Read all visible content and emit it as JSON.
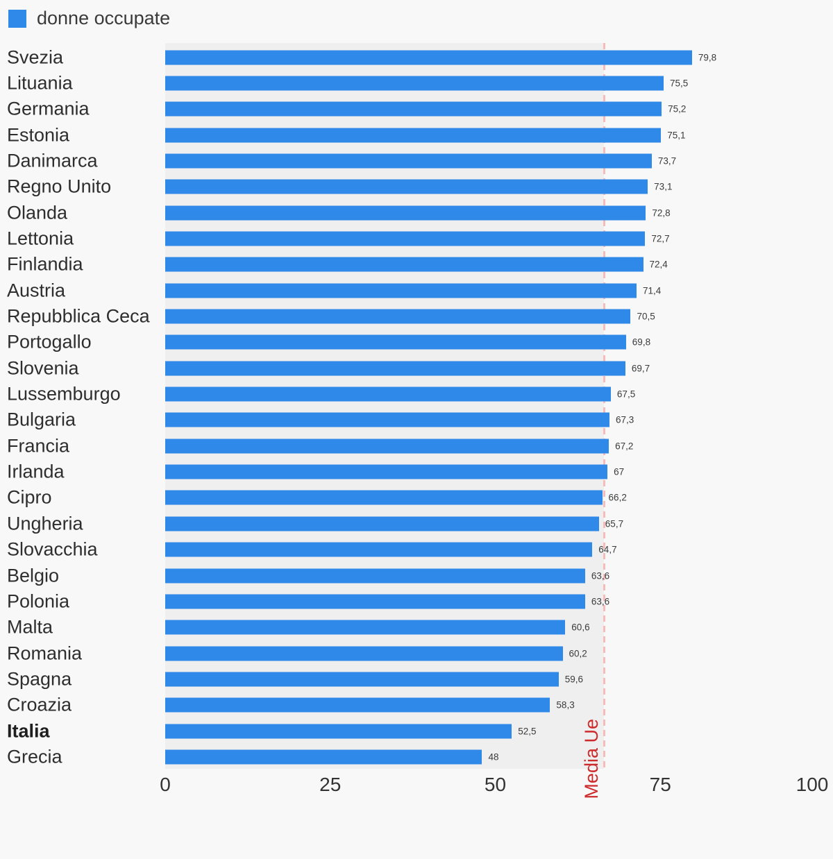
{
  "legend": {
    "label": "donne occupate",
    "color": "#2f89e8"
  },
  "chart_data": {
    "type": "bar",
    "orientation": "horizontal",
    "title": "",
    "xlabel": "",
    "ylabel": "",
    "xlim": [
      0,
      100
    ],
    "x_ticks": [
      "0",
      "25",
      "50",
      "75",
      "100"
    ],
    "x_tick_values": [
      0,
      25,
      50,
      75,
      100
    ],
    "grid": false,
    "legend_position": "top-left",
    "bar_color": "#2f89e8",
    "track_color": "#efefef",
    "categories": [
      "Svezia",
      "Lituania",
      "Germania",
      "Estonia",
      "Danimarca",
      "Regno Unito",
      "Olanda",
      "Lettonia",
      "Finlandia",
      "Austria",
      "Repubblica Ceca",
      "Portogallo",
      "Slovenia",
      "Lussemburgo",
      "Bulgaria",
      "Francia",
      "Irlanda",
      "Cipro",
      "Ungheria",
      "Slovacchia",
      "Belgio",
      "Polonia",
      "Malta",
      "Romania",
      "Spagna",
      "Croazia",
      "Italia",
      "Grecia"
    ],
    "values": [
      79.8,
      75.5,
      75.2,
      75.1,
      73.7,
      73.1,
      72.8,
      72.7,
      72.4,
      71.4,
      70.5,
      69.8,
      69.7,
      67.5,
      67.3,
      67.2,
      67,
      66.2,
      65.7,
      64.7,
      63.6,
      63.6,
      60.6,
      60.2,
      59.6,
      58.3,
      52.5,
      48
    ],
    "value_labels": [
      "79,8",
      "75,5",
      "75,2",
      "75,1",
      "73,7",
      "73,1",
      "72,8",
      "72,7",
      "72,4",
      "71,4",
      "70,5",
      "69,8",
      "69,7",
      "67,5",
      "67,3",
      "67,2",
      "67",
      "66,2",
      "65,7",
      "64,7",
      "63,6",
      "63,6",
      "60,6",
      "60,2",
      "59,6",
      "58,3",
      "52,5",
      "48"
    ],
    "bold_categories": [
      "Italia"
    ],
    "reference_line": {
      "label": "Media Ue",
      "value": 66.5,
      "label_color": "#cd2b2b",
      "line_color": "#f6bcbc"
    }
  }
}
